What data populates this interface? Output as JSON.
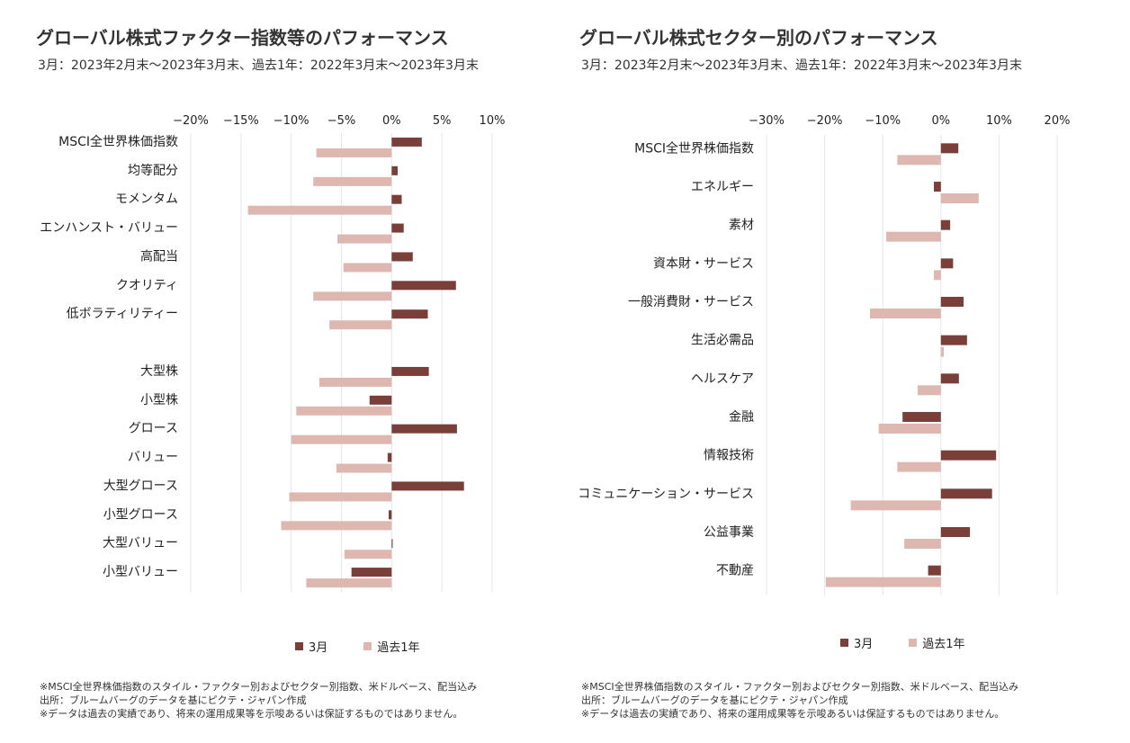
{
  "colors": {
    "march": "#7b3f3a",
    "past_year": "#deb8b0",
    "grid": "#e6e6e6"
  },
  "chart_data": [
    {
      "type": "bar",
      "orientation": "horizontal",
      "title": "グローバル株式ファクター指数等のパフォーマンス",
      "subtitle": "3月：2023年2月末～2023年3月末、過去1年：2022年3月末～2023年3月末",
      "xlim": [
        -20,
        10
      ],
      "ticks": [
        -20,
        -15,
        -10,
        -5,
        0,
        5,
        10
      ],
      "tick_labels": [
        "−20%",
        "−15%",
        "−10%",
        "−5%",
        "0%",
        "5%",
        "10%"
      ],
      "grid": true,
      "legend_position": "bottom",
      "categories": [
        "MSCI全世界株価指数",
        "均等配分",
        "モメンタム",
        "エンハンスト・バリュー",
        "高配当",
        "クオリティ",
        "低ボラティリティー",
        "",
        "大型株",
        "小型株",
        "グロース",
        "バリュー",
        "大型グロース",
        "小型グロース",
        "大型バリュー",
        "小型バリュー"
      ],
      "series": [
        {
          "name": "3月",
          "values": [
            3.0,
            0.6,
            1.0,
            1.2,
            2.1,
            6.4,
            3.6,
            null,
            3.7,
            -2.2,
            6.5,
            -0.4,
            7.2,
            -0.3,
            0.1,
            -4.0
          ]
        },
        {
          "name": "過去1年",
          "values": [
            -7.5,
            -7.8,
            -14.3,
            -5.4,
            -4.8,
            -7.8,
            -6.2,
            null,
            -7.2,
            -9.5,
            -10.0,
            -5.5,
            -10.2,
            -11.0,
            -4.7,
            -8.5
          ]
        }
      ],
      "notes": [
        "※MSCI全世界株価指数のスタイル・ファクター別およびセクター別指数、米ドルベース、配当込み",
        "出所：ブルームバーグのデータを基にピクテ・ジャパン作成",
        "※データは過去の実績であり、将来の運用成果等を示唆あるいは保証するものではありません。"
      ]
    },
    {
      "type": "bar",
      "orientation": "horizontal",
      "title": "グローバル株式セクター別のパフォーマンス",
      "subtitle": "3月：2023年2月末～2023年3月末、過去1年：2022年3月末～2023年3月末",
      "xlim": [
        -30,
        20
      ],
      "ticks": [
        -30,
        -20,
        -10,
        0,
        10,
        20
      ],
      "tick_labels": [
        "−30%",
        "−20%",
        "−10%",
        "0%",
        "10%",
        "20%"
      ],
      "grid": true,
      "legend_position": "bottom",
      "categories": [
        "MSCI全世界株価指数",
        "エネルギー",
        "素材",
        "資本財・サービス",
        "一般消費財・サービス",
        "生活必需品",
        "ヘルスケア",
        "金融",
        "情報技術",
        "コミュニケーション・サービス",
        "公益事業",
        "不動産"
      ],
      "series": [
        {
          "name": "3月",
          "values": [
            3.0,
            -1.2,
            1.6,
            2.1,
            3.9,
            4.5,
            3.1,
            -6.6,
            9.5,
            8.8,
            5.0,
            -2.2
          ]
        },
        {
          "name": "過去1年",
          "values": [
            -7.5,
            6.5,
            -9.4,
            -1.2,
            -12.2,
            0.5,
            -4.0,
            -10.7,
            -7.5,
            -15.5,
            -6.3,
            -19.8
          ]
        }
      ],
      "notes": [
        "※MSCI全世界株価指数のスタイル・ファクター別およびセクター別指数、米ドルベース、配当込み",
        "出所：ブルームバーグのデータを基にピクテ・ジャパン作成",
        "※データは過去の実績であり、将来の運用成果等を示唆あるいは保証するものではありません。"
      ]
    }
  ]
}
